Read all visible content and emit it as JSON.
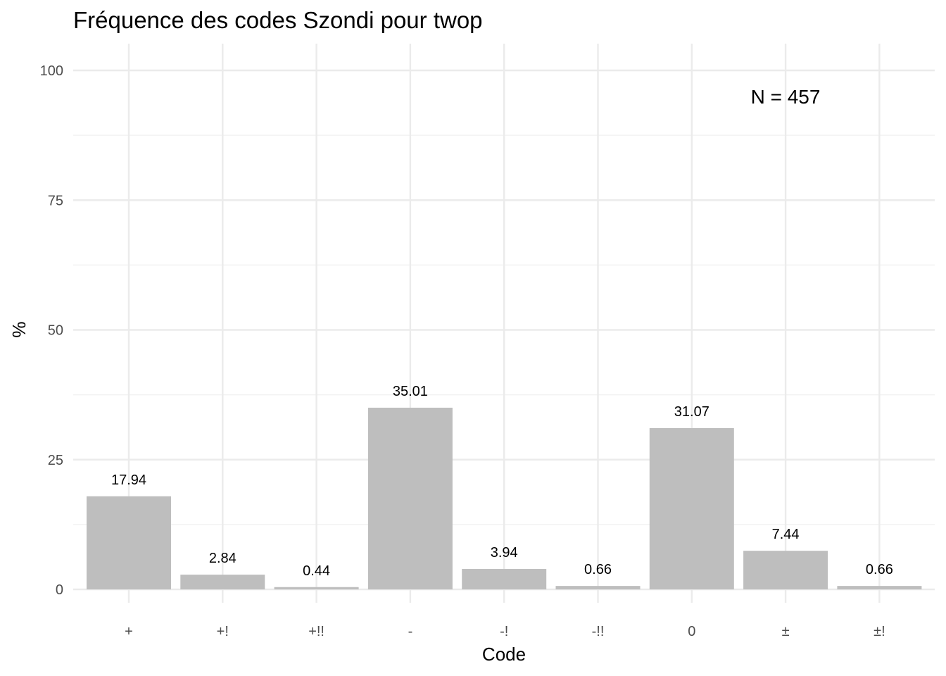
{
  "chart_data": {
    "type": "bar",
    "title": "Fréquence des codes Szondi pour twop",
    "xlabel": "Code",
    "ylabel": "%",
    "categories": [
      "+",
      "+!",
      "+!!",
      "-",
      "-!",
      "-!!",
      "0",
      "±",
      "±!"
    ],
    "values": [
      17.94,
      2.84,
      0.44,
      35.01,
      3.94,
      0.66,
      31.07,
      7.44,
      0.66
    ],
    "value_labels": [
      "17.94",
      "2.84",
      "0.44",
      "35.01",
      "3.94",
      "0.66",
      "31.07",
      "7.44",
      "0.66"
    ],
    "ylim": [
      0,
      100
    ],
    "yticks": [
      0,
      25,
      50,
      75,
      100
    ],
    "ytick_labels": [
      "0",
      "25",
      "50",
      "75",
      "100"
    ],
    "annotation": "N = 457",
    "bar_color": "#bebebe",
    "grid": true,
    "legend": "none"
  }
}
